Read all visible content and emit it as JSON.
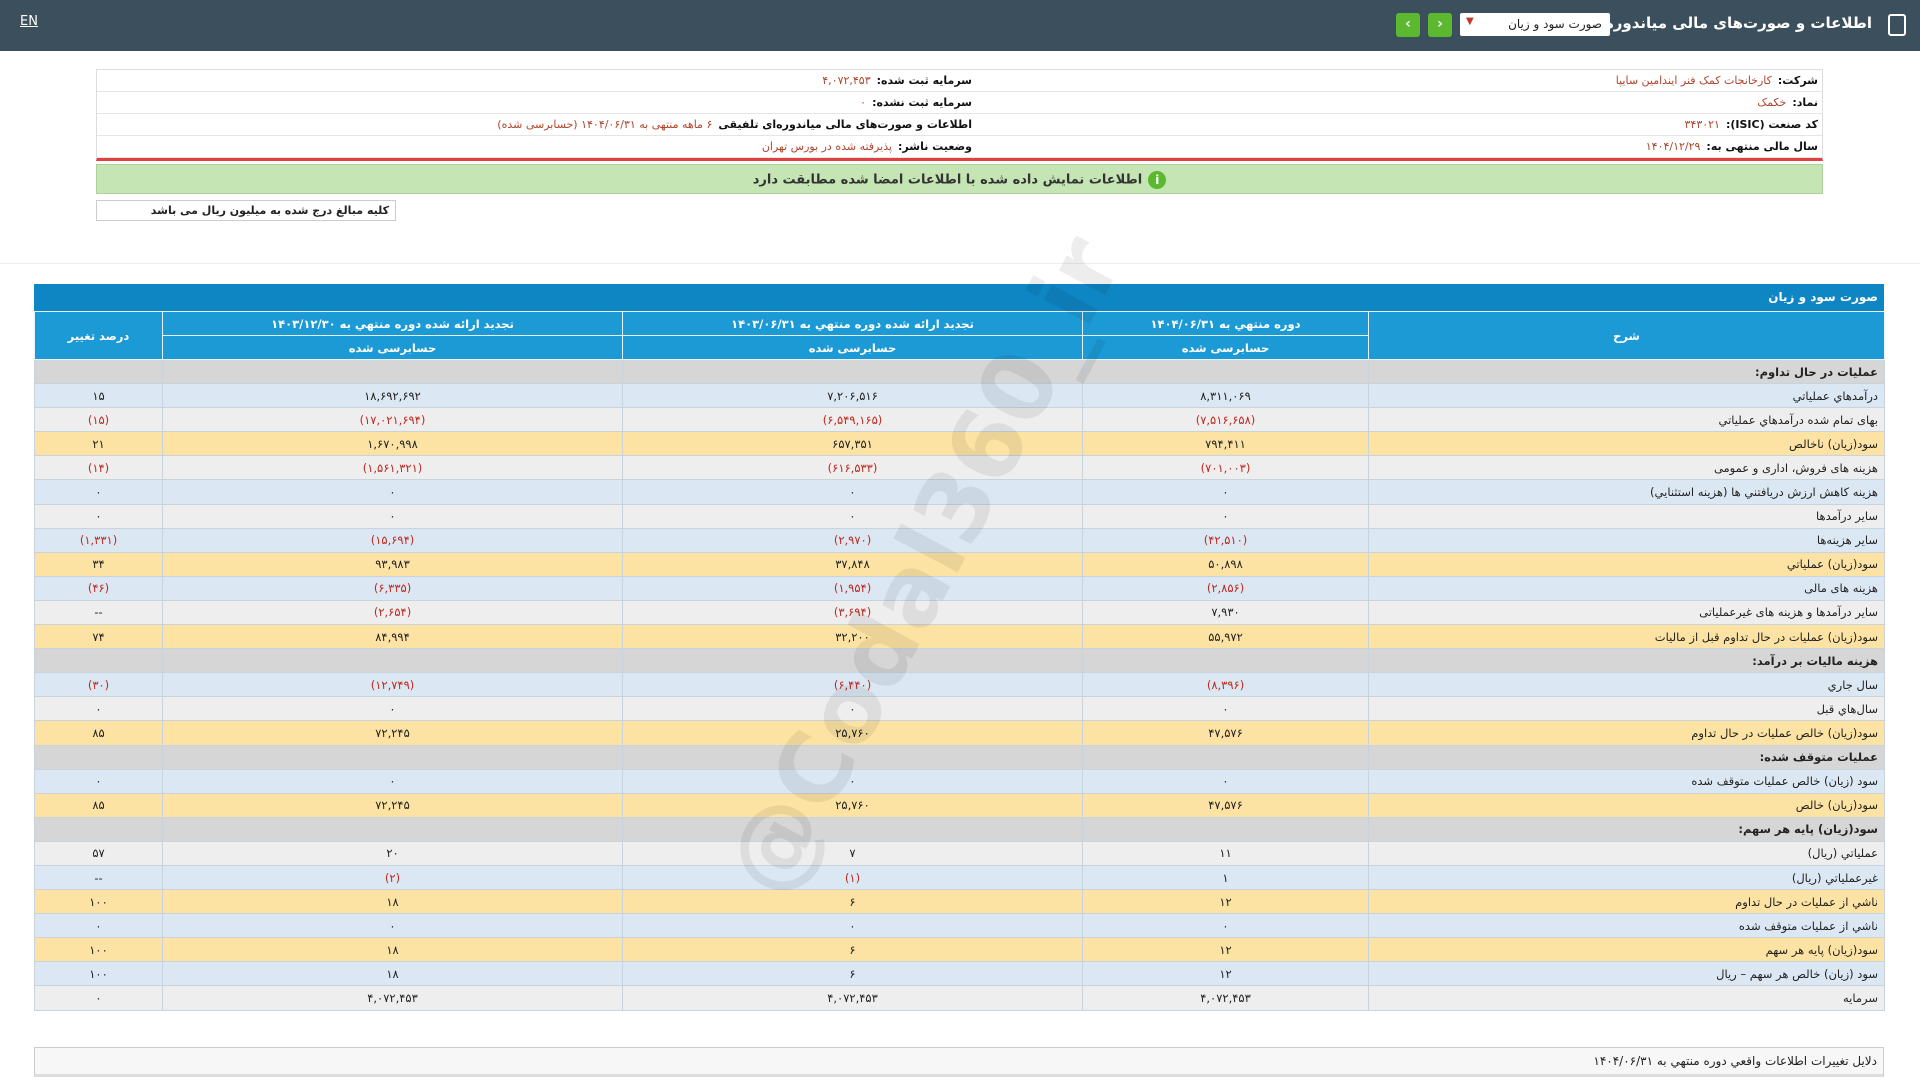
{
  "header": {
    "title": "اطلاعات و صورت‌های مالی میاندوره‌ای تلفیقی",
    "dropdown": "صورت سود و زیان",
    "lang": "EN"
  },
  "info": {
    "right": [
      {
        "label": "شرکت:",
        "value": "کارخانجات کمک فنر ایندامین سایپا"
      },
      {
        "label": "نماد:",
        "value": "خکمک"
      },
      {
        "label": "کد صنعت (ISIC):",
        "value": "۳۴۳۰۲۱"
      },
      {
        "label": "سال مالی منتهی به:",
        "value": "۱۴۰۴/۱۲/۲۹"
      }
    ],
    "left": [
      {
        "label": "سرمایه ثبت شده:",
        "value": "۴,۰۷۲,۴۵۳"
      },
      {
        "label": "سرمایه ثبت نشده:",
        "value": "۰"
      },
      {
        "label": "اطلاعات و صورت‌های مالی میاندوره‌ای تلفیقی",
        "value": "۶ ماهه منتهی به ۱۴۰۴/۰۶/۳۱ (حسابرسی شده)"
      },
      {
        "label": "وضعیت ناشر:",
        "value": "پذیرفته شده در بورس تهران"
      }
    ]
  },
  "notice": "اطلاعات نمایش داده شده با اطلاعات امضا شده مطابقت دارد",
  "unit_note": "کلیه مبالغ درج شده به میلیون ریال می باشد",
  "table": {
    "title": "صورت سود و زیان",
    "columns": [
      "شرح",
      "دوره منتهي به ۱۴۰۴/۰۶/۳۱",
      "تجديد ارائه شده دوره منتهي به ۱۴۰۳/۰۶/۳۱",
      "تجديد ارائه شده دوره منتهي به ۱۴۰۳/۱۲/۳۰",
      "درصد تغيير"
    ],
    "subcolumns": [
      "حسابرسی شده",
      "حسابرسی شده",
      "حسابرسی شده"
    ],
    "rows": [
      [
        "عمليات در حال تداوم:"
      ],
      [
        "درآمدهاي عملياتي",
        "۸,۳۱۱,۰۶۹",
        "۷,۲۰۶,۵۱۶",
        "۱۸,۶۹۲,۶۹۲",
        "۱۵"
      ],
      [
        "بهاى تمام شده درآمدهاي عملياتي",
        "(۷,۵۱۶,۶۵۸)",
        "(۶,۵۴۹,۱۶۵)",
        "(۱۷,۰۲۱,۶۹۴)",
        "(۱۵)"
      ],
      [
        "سود(زيان) ناخالص",
        "۷۹۴,۴۱۱",
        "۶۵۷,۳۵۱",
        "۱,۶۷۰,۹۹۸",
        "۲۱"
      ],
      [
        "هزينه هاى فروش، اداری و عمومى",
        "(۷۰۱,۰۰۳)",
        "(۶۱۶,۵۳۳)",
        "(۱,۵۶۱,۳۲۱)",
        "(۱۴)"
      ],
      [
        "هزينه کاهش ارزش دريافتني ها (هزينه استثنايي)",
        "۰",
        "۰",
        "۰",
        "۰"
      ],
      [
        "ساير درآمدها",
        "۰",
        "۰",
        "۰",
        "۰"
      ],
      [
        "ساير هزينه‌ها",
        "(۴۲,۵۱۰)",
        "(۲,۹۷۰)",
        "(۱۵,۶۹۴)",
        "(۱,۳۳۱)"
      ],
      [
        "سود(زيان) عملياتي",
        "۵۰,۸۹۸",
        "۳۷,۸۴۸",
        "۹۳,۹۸۳",
        "۳۴"
      ],
      [
        "هزينه هاى مالى",
        "(۲,۸۵۶)",
        "(۱,۹۵۴)",
        "(۶,۳۳۵)",
        "(۴۶)"
      ],
      [
        "ساير درآمدها و هزينه هاى غيرعملياتى",
        "۷,۹۳۰",
        "(۳,۶۹۴)",
        "(۲,۶۵۴)",
        "--"
      ],
      [
        "سود(زيان) عمليات در حال تداوم قبل از ماليات",
        "۵۵,۹۷۲",
        "۳۲,۲۰۰",
        "۸۴,۹۹۴",
        "۷۴"
      ],
      [
        "هزينه ماليات بر درآمد:"
      ],
      [
        "سال جاري",
        "(۸,۳۹۶)",
        "(۶,۴۴۰)",
        "(۱۲,۷۴۹)",
        "(۳۰)"
      ],
      [
        "سال‌هاي قبل",
        "۰",
        "۰",
        "۰",
        "۰"
      ],
      [
        "سود(زيان) خالص عمليات در حال تداوم",
        "۴۷,۵۷۶",
        "۲۵,۷۶۰",
        "۷۲,۲۴۵",
        "۸۵"
      ],
      [
        "عمليات متوقف شده:"
      ],
      [
        "سود (زيان) خالص عمليات متوقف شده",
        "۰",
        "۰",
        "۰",
        "۰"
      ],
      [
        "سود(زيان) خالص",
        "۴۷,۵۷۶",
        "۲۵,۷۶۰",
        "۷۲,۲۴۵",
        "۸۵"
      ],
      [
        "سود(زيان) پايه هر سهم:"
      ],
      [
        "عملياتي (ريال)",
        "۱۱",
        "۷",
        "۲۰",
        "۵۷"
      ],
      [
        "غيرعملياتي (ريال)",
        "۱",
        "(۱)",
        "(۲)",
        "--"
      ],
      [
        "ناشي از عمليات در حال تداوم",
        "۱۲",
        "۶",
        "۱۸",
        "۱۰۰"
      ],
      [
        "ناشي از عمليات متوقف شده",
        "۰",
        "۰",
        "۰",
        "۰"
      ],
      [
        "سود(زيان) پايه هر سهم",
        "۱۲",
        "۶",
        "۱۸",
        "۱۰۰"
      ],
      [
        "سود (زيان) خالص هر سهم – ريال",
        "۱۲",
        "۶",
        "۱۸",
        "۱۰۰"
      ],
      [
        "سرمايه",
        "۴,۰۷۲,۴۵۳",
        "۴,۰۷۲,۴۵۳",
        "۴,۰۷۲,۴۵۳",
        "۰"
      ]
    ]
  },
  "watermark": "@Codal360_ir",
  "footer_title": "دلايل تغييرات اطلاعات واقعي دوره منتهي به ۱۴۰۴/۰۶/۳۱"
}
